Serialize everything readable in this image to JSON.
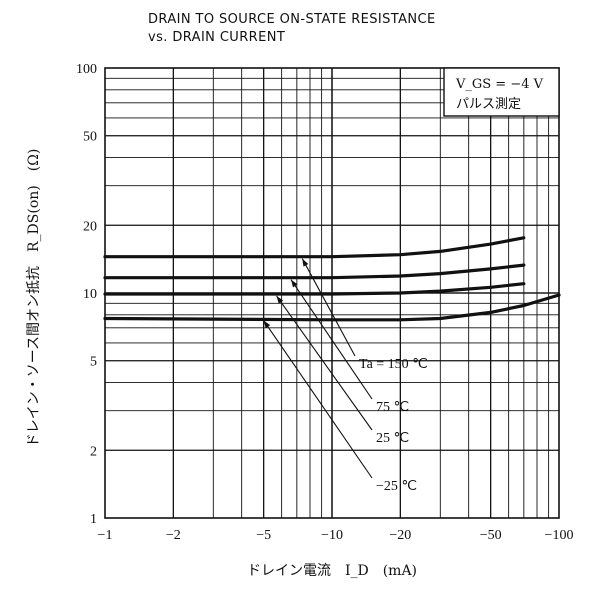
{
  "chart_data": {
    "type": "line",
    "title_line1": "DRAIN TO SOURCE ON-STATE RESISTANCE",
    "title_line2": "vs. DRAIN CURRENT",
    "xlabel": "ドレイン電流　I_D　(mA)",
    "ylabel": "ドレイン・ソース間オン抵抗　R_DS(on)　(Ω)",
    "x_scale": "log",
    "y_scale": "log",
    "xlim": [
      -1,
      -100
    ],
    "ylim": [
      1,
      100
    ],
    "x_ticks": [
      {
        "value": -1,
        "label": "−1"
      },
      {
        "value": -2,
        "label": "−2"
      },
      {
        "value": -5,
        "label": "−5"
      },
      {
        "value": -10,
        "label": "−10"
      },
      {
        "value": -20,
        "label": "−20"
      },
      {
        "value": -50,
        "label": "−50"
      },
      {
        "value": -100,
        "label": "−100"
      }
    ],
    "y_ticks": [
      {
        "value": 1,
        "label": "1"
      },
      {
        "value": 2,
        "label": "2"
      },
      {
        "value": 5,
        "label": "5"
      },
      {
        "value": 10,
        "label": "10"
      },
      {
        "value": 20,
        "label": "20"
      },
      {
        "value": 50,
        "label": "50"
      },
      {
        "value": 100,
        "label": "100"
      }
    ],
    "grid": true,
    "conditions": {
      "vgs": "V_GS = −4 V",
      "pulse": "パルス測定"
    },
    "series": [
      {
        "name": "Ta = 150 ℃",
        "x": [
          -1,
          -10,
          -20,
          -30,
          -50,
          -70
        ],
        "y": [
          14.5,
          14.5,
          14.8,
          15.3,
          16.5,
          17.6
        ]
      },
      {
        "name": "75 ℃",
        "x": [
          -1,
          -10,
          -20,
          -30,
          -50,
          -70
        ],
        "y": [
          11.7,
          11.7,
          11.9,
          12.2,
          12.8,
          13.3
        ]
      },
      {
        "name": "25 ℃",
        "x": [
          -1,
          -10,
          -20,
          -30,
          -50,
          -70
        ],
        "y": [
          9.9,
          9.9,
          10.0,
          10.2,
          10.6,
          11.0
        ]
      },
      {
        "name": "−25 ℃",
        "x": [
          -1,
          -10,
          -20,
          -30,
          -50,
          -70,
          -100
        ],
        "y": [
          7.7,
          7.6,
          7.6,
          7.7,
          8.2,
          8.8,
          9.8
        ]
      }
    ]
  }
}
